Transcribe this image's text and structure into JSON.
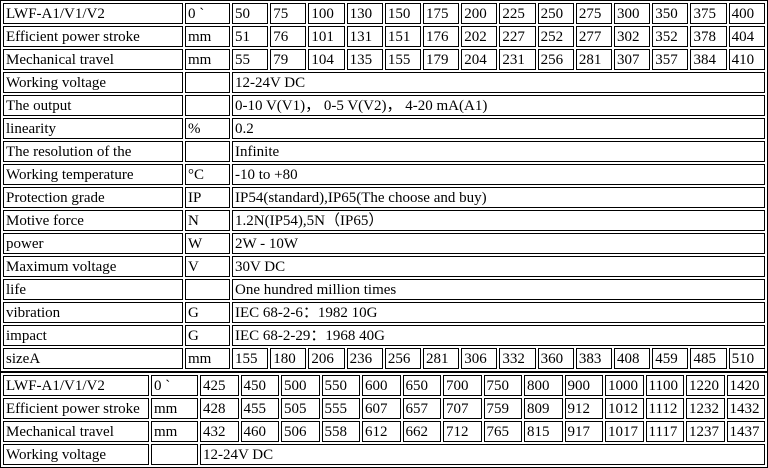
{
  "page": {
    "background": "#ffffff",
    "border_color": "#000000",
    "text_color": "#000000"
  },
  "tables": [
    {
      "name": "spec-table-short-strokes",
      "numeric_columns": 14,
      "rows": [
        {
          "label": "LWF-A1/V1/V2",
          "unit": "0 `",
          "values": [
            "50",
            "75",
            "100",
            "130",
            "150",
            "175",
            "200",
            "225",
            "250",
            "275",
            "300",
            "350",
            "375",
            "400"
          ]
        },
        {
          "label": "Efficient power stroke",
          "unit": "mm",
          "values": [
            "51",
            "76",
            "101",
            "131",
            "151",
            "176",
            "202",
            "227",
            "252",
            "277",
            "302",
            "352",
            "378",
            "404"
          ]
        },
        {
          "label": "Mechanical travel",
          "unit": "mm",
          "values": [
            "55",
            "79",
            "104",
            "135",
            "155",
            "179",
            "204",
            "231",
            "256",
            "281",
            "307",
            "357",
            "384",
            "410"
          ]
        },
        {
          "label": "Working voltage",
          "unit": "",
          "value": "12-24V DC"
        },
        {
          "label": "The output",
          "unit": "",
          "value": "0-10 V(V1)， 0-5 V(V2)， 4-20 mA(A1)"
        },
        {
          "label": "linearity",
          "unit": "%",
          "value": "0.2"
        },
        {
          "label": "The resolution of the",
          "unit": "",
          "value": "Infinite"
        },
        {
          "label": "Working temperature",
          "unit": "°C",
          "value": "-10 to +80"
        },
        {
          "label": "Protection grade",
          "unit": "IP",
          "value": "IP54(standard),IP65(The choose and buy)"
        },
        {
          "label": "Motive force",
          "unit": "N",
          "value": "1.2N(IP54),5N（IP65）"
        },
        {
          "label": "power",
          "unit": "W",
          "value": "2W - 10W"
        },
        {
          "label": "Maximum voltage",
          "unit": "V",
          "value": "30V DC"
        },
        {
          "label": "life",
          "unit": "",
          "value": "One hundred million times"
        },
        {
          "label": "vibration",
          "unit": "G",
          "value": "IEC 68-2-6：1982 10G"
        },
        {
          "label": "impact",
          "unit": "G",
          "value": "IEC 68-2-29：1968 40G"
        },
        {
          "label": "sizeA",
          "unit": "mm",
          "values": [
            "155",
            "180",
            "206",
            "236",
            "256",
            "281",
            "306",
            "332",
            "360",
            "383",
            "408",
            "459",
            "485",
            "510"
          ]
        }
      ]
    },
    {
      "name": "spec-table-long-strokes",
      "numeric_columns": 14,
      "rows": [
        {
          "label": "LWF-A1/V1/V2",
          "unit": "0 `",
          "values": [
            "425",
            "450",
            "500",
            "550",
            "600",
            "650",
            "700",
            "750",
            "800",
            "900",
            "1000",
            "1100",
            "1220",
            "1420"
          ]
        },
        {
          "label": "Efficient power stroke",
          "unit": "mm",
          "values": [
            "428",
            "455",
            "505",
            "555",
            "607",
            "657",
            "707",
            "759",
            "809",
            "912",
            "1012",
            "1112",
            "1232",
            "1432"
          ]
        },
        {
          "label": "Mechanical travel",
          "unit": "mm",
          "values": [
            "432",
            "460",
            "506",
            "558",
            "612",
            "662",
            "712",
            "765",
            "815",
            "917",
            "1017",
            "1117",
            "1237",
            "1437"
          ]
        },
        {
          "label": "Working voltage",
          "unit": "",
          "value": "12-24V DC"
        }
      ]
    }
  ]
}
